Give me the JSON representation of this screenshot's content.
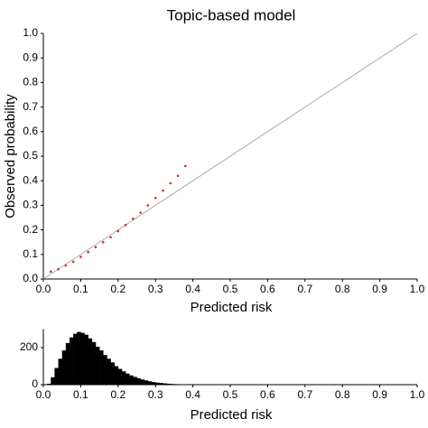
{
  "chart_data": [
    {
      "type": "scatter",
      "title": "Topic-based model",
      "xlabel": "Predicted risk",
      "ylabel": "Observed probability",
      "xlim": [
        0,
        1
      ],
      "ylim": [
        0,
        1
      ],
      "xticks": [
        {
          "value": 0,
          "label": "0.0"
        },
        0.1,
        0.2,
        0.3,
        0.4,
        0.5,
        0.6,
        0.7,
        0.8,
        0.9,
        {
          "value": 1,
          "label": "1.0"
        }
      ],
      "yticks": [
        {
          "value": 0,
          "label": "0.0"
        },
        0.1,
        0.2,
        0.3,
        0.4,
        0.5,
        0.6,
        0.7,
        0.8,
        0.9,
        {
          "value": 1,
          "label": "1.0"
        }
      ],
      "grid": false,
      "series": [
        {
          "style": "line",
          "color": "#aaaaaa",
          "x": [
            0,
            1
          ],
          "values": [
            0,
            1
          ]
        },
        {
          "style": "dots",
          "color": "#d62728",
          "x": [
            0.02,
            0.04,
            0.06,
            0.08,
            0.1,
            0.12,
            0.14,
            0.16,
            0.18,
            0.2,
            0.22,
            0.24,
            0.26,
            0.28,
            0.3,
            0.32,
            0.34,
            0.36,
            0.38
          ],
          "values": [
            0.03,
            0.04,
            0.055,
            0.07,
            0.09,
            0.11,
            0.13,
            0.15,
            0.17,
            0.195,
            0.22,
            0.245,
            0.27,
            0.3,
            0.33,
            0.36,
            0.39,
            0.42,
            0.46
          ]
        }
      ]
    },
    {
      "type": "histogram",
      "xlabel": "Predicted risk",
      "color": "#000000",
      "xlim": [
        0,
        1
      ],
      "ylim": [
        0,
        300
      ],
      "xticks": [
        {
          "value": 0,
          "label": "0.0"
        },
        0.1,
        0.2,
        0.3,
        0.4,
        0.5,
        0.6,
        0.7,
        0.8,
        0.9,
        {
          "value": 1,
          "label": "1.0"
        }
      ],
      "yticks": [
        0,
        200
      ],
      "bins": [
        0,
        0.01,
        0.02,
        0.03,
        0.04,
        0.05,
        0.06,
        0.07,
        0.08,
        0.09,
        0.1,
        0.11,
        0.12,
        0.13,
        0.14,
        0.15,
        0.16,
        0.17,
        0.18,
        0.19,
        0.2,
        0.21,
        0.22,
        0.23,
        0.24,
        0.25,
        0.26,
        0.27,
        0.28,
        0.29,
        0.3,
        0.31,
        0.32,
        0.33,
        0.34,
        0.35,
        0.36,
        0.37,
        0.38,
        0.39,
        0.4
      ],
      "values": [
        0,
        5,
        40,
        90,
        140,
        185,
        225,
        255,
        275,
        285,
        280,
        270,
        250,
        230,
        205,
        185,
        160,
        140,
        120,
        100,
        85,
        72,
        60,
        50,
        42,
        35,
        28,
        23,
        18,
        14,
        11,
        9,
        7,
        5,
        4,
        3,
        2,
        2,
        1,
        1
      ]
    }
  ]
}
